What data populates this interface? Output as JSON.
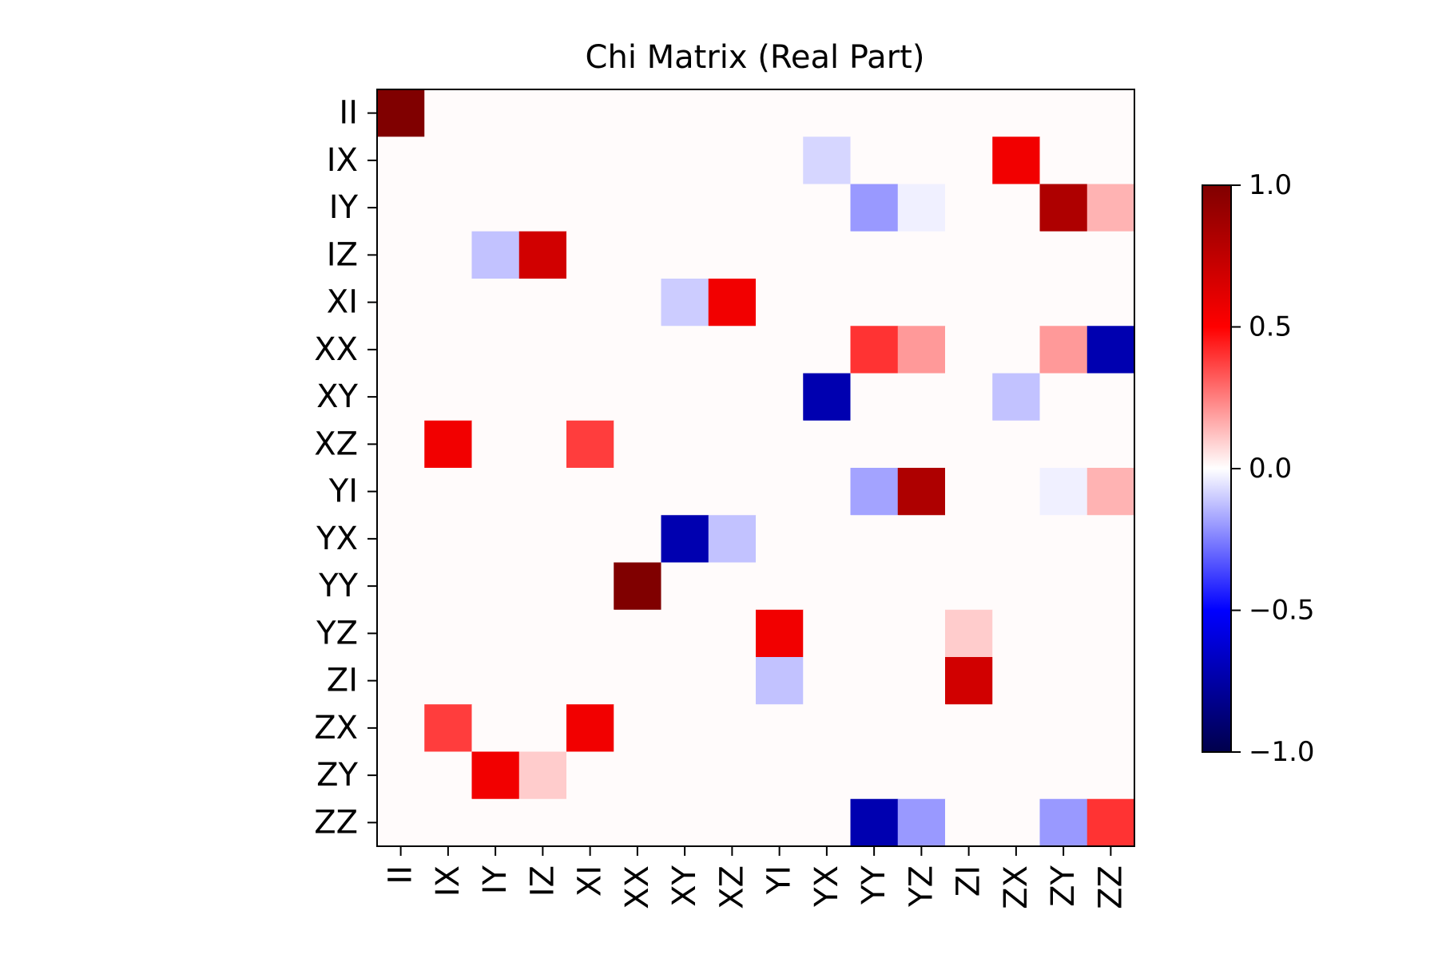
{
  "chart_data": {
    "type": "heatmap",
    "title": "Chi Matrix (Real Part)",
    "xlabel": "",
    "ylabel": "",
    "colormap": "seismic",
    "vmin": -1.0,
    "vmax": 1.0,
    "labels": [
      "II",
      "IX",
      "IY",
      "IZ",
      "XI",
      "XX",
      "XY",
      "XZ",
      "YI",
      "YX",
      "YY",
      "YZ",
      "ZI",
      "ZX",
      "ZY",
      "ZZ"
    ],
    "colorbar_ticks": [
      {
        "value": 1.0,
        "label": "1.0"
      },
      {
        "value": 0.5,
        "label": "0.5"
      },
      {
        "value": 0.0,
        "label": "0.0"
      },
      {
        "value": -0.5,
        "label": "−0.5"
      },
      {
        "value": -1.0,
        "label": "−1.0"
      }
    ],
    "matrix": [
      [
        1.0,
        0,
        0,
        0,
        0,
        0,
        0,
        0,
        0,
        0,
        0,
        0,
        0,
        0,
        0,
        0
      ],
      [
        0,
        0,
        0,
        0,
        0,
        0,
        0,
        0,
        0,
        -0.08,
        0,
        0,
        0,
        0.55,
        0,
        0
      ],
      [
        0,
        0,
        0,
        0,
        0,
        0,
        0,
        0,
        0,
        0,
        -0.2,
        -0.03,
        0,
        0,
        0.82,
        0.15
      ],
      [
        0,
        0,
        -0.12,
        0.68,
        0,
        0,
        0,
        0,
        0,
        0,
        0,
        0,
        0,
        0,
        0,
        0
      ],
      [
        0,
        0,
        0,
        0,
        0,
        0,
        -0.1,
        0.55,
        0,
        0,
        0,
        0,
        0,
        0,
        0,
        0
      ],
      [
        0,
        0,
        0,
        0,
        0,
        0,
        0,
        0,
        0,
        0,
        0.4,
        0.2,
        0,
        0,
        0.2,
        -0.72
      ],
      [
        0,
        0,
        0,
        0,
        0,
        0,
        0,
        0,
        0,
        -0.72,
        0,
        0,
        0,
        -0.12,
        0,
        0
      ],
      [
        0,
        0.55,
        0,
        0,
        0.38,
        0,
        0,
        0,
        0,
        0,
        0,
        0,
        0,
        0,
        0,
        0
      ],
      [
        0,
        0,
        0,
        0,
        0,
        0,
        0,
        0,
        0,
        0,
        -0.18,
        0.82,
        0,
        0,
        -0.03,
        0.15
      ],
      [
        0,
        0,
        0,
        0,
        0,
        0,
        -0.72,
        -0.12,
        0,
        0,
        0,
        0,
        0,
        0,
        0,
        0
      ],
      [
        0,
        0,
        0,
        0,
        0,
        1.0,
        0,
        0,
        0,
        0,
        0,
        0,
        0,
        0,
        0,
        0
      ],
      [
        0,
        0,
        0,
        0,
        0,
        0,
        0,
        0,
        0.55,
        0,
        0,
        0,
        0.1,
        0,
        0,
        0
      ],
      [
        0,
        0,
        0,
        0,
        0,
        0,
        0,
        0,
        -0.12,
        0,
        0,
        0,
        0.68,
        0,
        0,
        0
      ],
      [
        0,
        0.38,
        0,
        0,
        0.55,
        0,
        0,
        0,
        0,
        0,
        0,
        0,
        0,
        0,
        0,
        0
      ],
      [
        0,
        0,
        0.55,
        0.1,
        0,
        0,
        0,
        0,
        0,
        0,
        0,
        0,
        0,
        0,
        0,
        0
      ],
      [
        0,
        0,
        0,
        0,
        0,
        0,
        0,
        0,
        0,
        0,
        -0.72,
        -0.2,
        0,
        0,
        -0.2,
        0.4
      ]
    ]
  }
}
